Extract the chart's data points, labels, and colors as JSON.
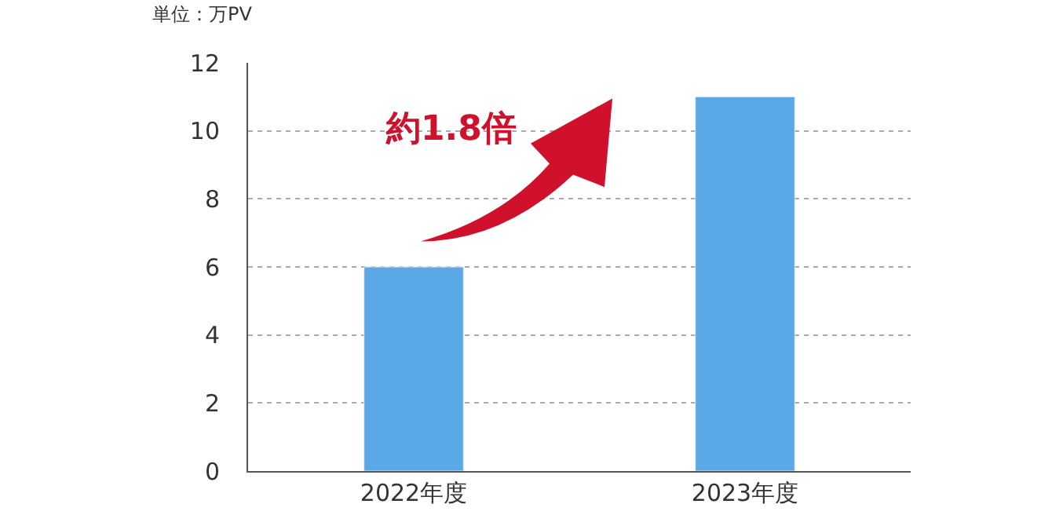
{
  "chart_data": {
    "type": "bar",
    "ylabel": "単位：万PV",
    "categories": [
      "2022年度",
      "2023年度"
    ],
    "values": [
      6,
      11
    ],
    "color": "#5ba8e6",
    "ylim": [
      0,
      12
    ],
    "yticks": [
      0,
      2,
      4,
      6,
      8,
      10,
      12
    ],
    "grid": "y",
    "annotations": [
      "約1.8倍"
    ]
  }
}
